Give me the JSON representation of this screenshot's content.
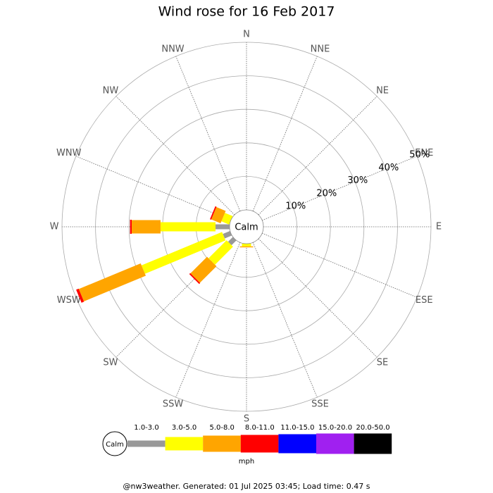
{
  "chart_data": {
    "type": "wind_rose",
    "title": "Wind rose for 16 Feb 2017",
    "directions": [
      "N",
      "NNE",
      "NE",
      "ENE",
      "E",
      "ESE",
      "SE",
      "SSE",
      "S",
      "SSW",
      "SW",
      "WSW",
      "W",
      "WNW",
      "NW",
      "NNW"
    ],
    "series": [
      {
        "name": "1.0-3.0",
        "color": "#999999",
        "values": [
          0,
          0,
          0,
          0,
          0,
          0,
          0,
          0,
          0,
          0,
          2,
          2.3,
          4.2,
          0,
          0,
          0
        ]
      },
      {
        "name": "3.0-5.0",
        "color": "#ffff00",
        "values": [
          0,
          0,
          0,
          0,
          0,
          0,
          0,
          0,
          0.8,
          0,
          7.6,
          26,
          16.4,
          2.5,
          0,
          0
        ]
      },
      {
        "name": "5.0-8.0",
        "color": "#ffa500",
        "values": [
          0,
          0,
          0,
          0,
          0,
          0,
          0,
          0,
          0.3,
          0,
          7,
          20,
          8.6,
          3,
          0,
          0
        ]
      },
      {
        "name": "8.0-11.0",
        "color": "#ff0000",
        "values": [
          0,
          0,
          0,
          0,
          0,
          0,
          0,
          0,
          0,
          0,
          0.4,
          0.8,
          0.5,
          0.4,
          0,
          0
        ]
      },
      {
        "name": "11.0-15.0",
        "color": "#0000ff",
        "values": [
          0,
          0,
          0,
          0,
          0,
          0,
          0,
          0,
          0,
          0,
          0,
          0,
          0,
          0,
          0,
          0
        ]
      },
      {
        "name": "15.0-20.0",
        "color": "#a020f0",
        "values": [
          0,
          0,
          0,
          0,
          0,
          0,
          0,
          0,
          0,
          0,
          0,
          0,
          0,
          0,
          0,
          0
        ]
      },
      {
        "name": "20.0-50.0",
        "color": "#000000",
        "values": [
          0,
          0,
          0,
          0,
          0,
          0,
          0,
          0,
          0,
          0,
          0,
          0,
          0,
          0,
          0,
          0
        ]
      }
    ],
    "rlim": [
      0,
      50
    ],
    "rticks": [
      {
        "value": 10,
        "label": "10%"
      },
      {
        "value": 20,
        "label": "20%"
      },
      {
        "value": 30,
        "label": "30%"
      },
      {
        "value": 40,
        "label": "40%"
      },
      {
        "value": 50,
        "label": "50%"
      }
    ],
    "calm_label": "Calm",
    "legend_unit": "mph",
    "footer": "@nw3weather. Generated: 01 Jul 2025 03:45; Load time: 0.47 s"
  }
}
